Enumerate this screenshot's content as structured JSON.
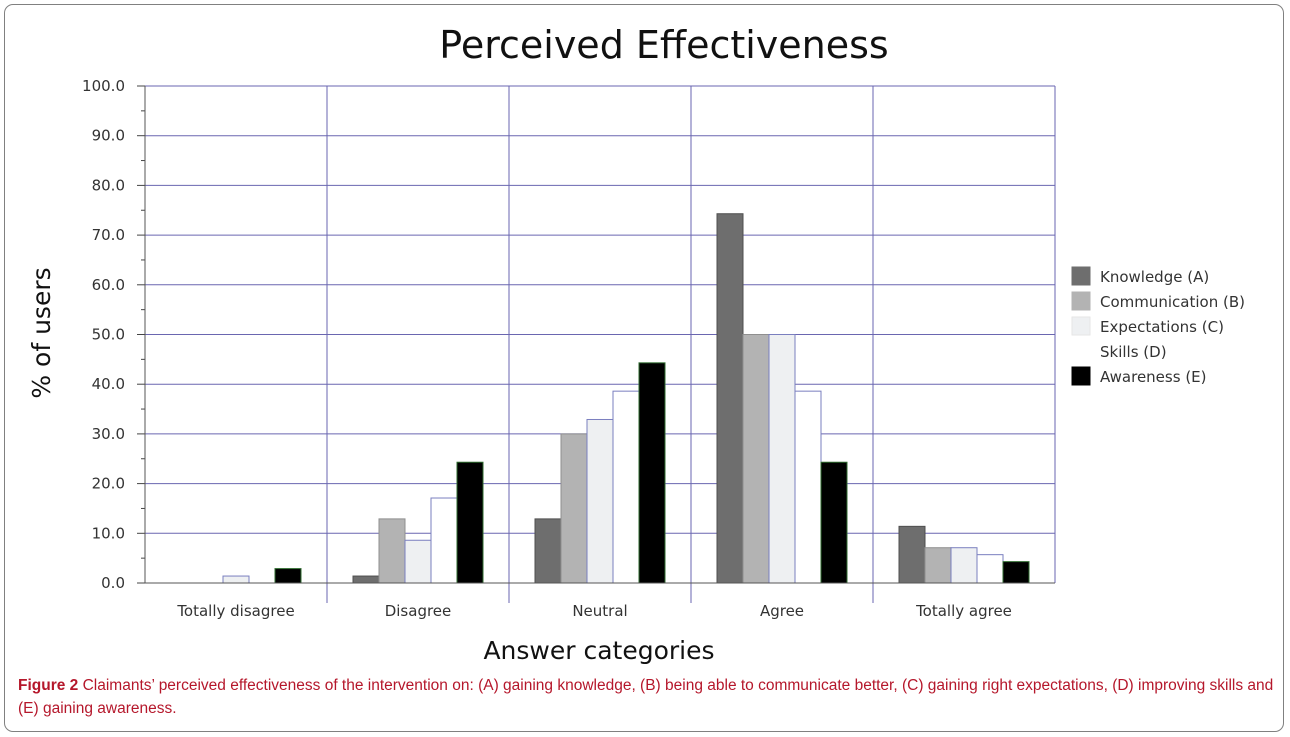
{
  "chart_data": {
    "type": "bar",
    "title": "Perceived Effectiveness",
    "xlabel": "Answer categories",
    "ylabel": "% of users",
    "ylim": [
      0,
      100
    ],
    "yticks": [
      "0.0",
      "10.0",
      "20.0",
      "30.0",
      "40.0",
      "50.0",
      "60.0",
      "70.0",
      "80.0",
      "90.0",
      "100.0"
    ],
    "grid": true,
    "legend_position": "right",
    "categories": [
      "Totally disagree",
      "Disagree",
      "Neutral",
      "Agree",
      "Totally agree"
    ],
    "series": [
      {
        "name": "Knowledge (A)",
        "color": "#6e6e6e",
        "values": [
          0.0,
          1.4,
          12.9,
          74.3,
          11.4
        ]
      },
      {
        "name": "Communication (B)",
        "color": "#b3b3b3",
        "values": [
          0.0,
          12.9,
          30.0,
          50.0,
          7.1
        ]
      },
      {
        "name": "Expectations (C)",
        "color": "#eef0f2",
        "values": [
          1.4,
          8.6,
          32.9,
          50.0,
          7.1
        ]
      },
      {
        "name": "Skills (D)",
        "color": "#ffffff",
        "values": [
          0.0,
          17.1,
          38.6,
          38.6,
          5.7
        ]
      },
      {
        "name": "Awareness (E)",
        "color": "#000000",
        "values": [
          2.9,
          24.3,
          44.3,
          24.3,
          4.3
        ]
      }
    ]
  },
  "caption": {
    "label": "Figure 2",
    "text": " Claimants’ perceived effectiveness of the intervention on: (A) gaining knowledge, (B) being able to communicate better, (C) gaining right expectations, (D) improving skills and (E) gaining awareness."
  }
}
